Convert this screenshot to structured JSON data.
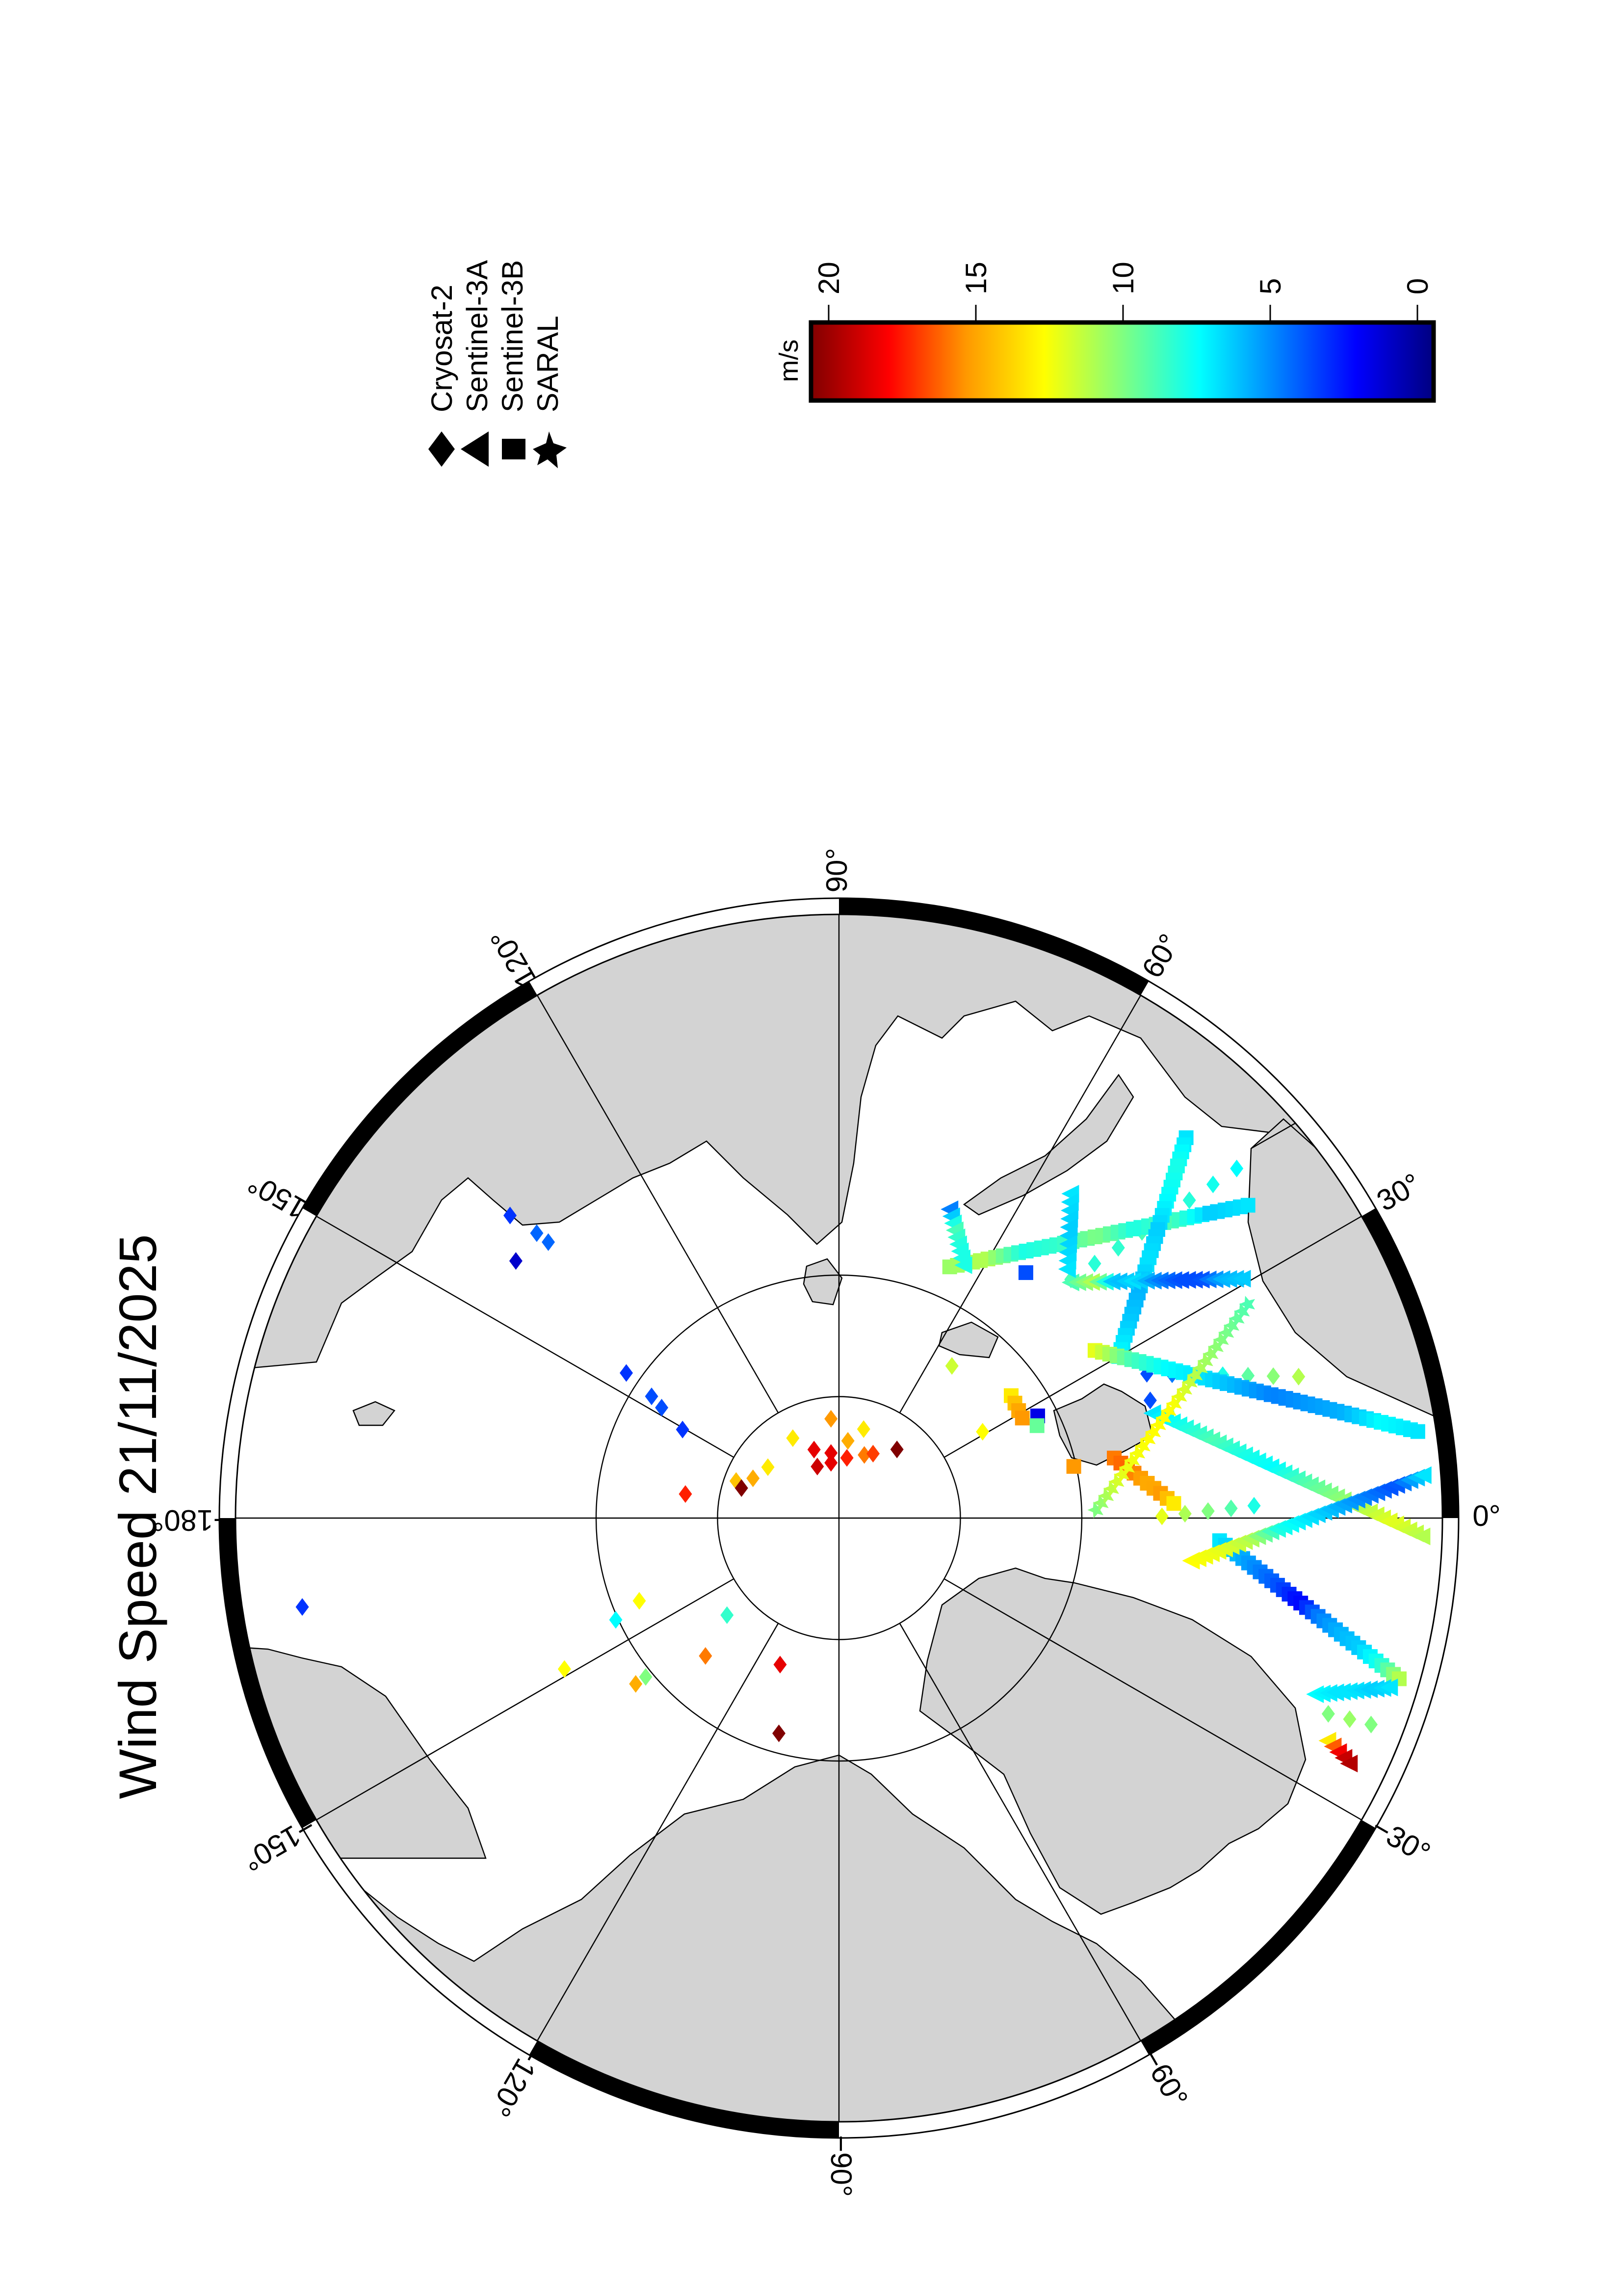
{
  "title": "Wind Speed 21/11/2025",
  "legend": {
    "satellites": [
      {
        "name": "Cryosat-2",
        "marker": "diamond"
      },
      {
        "name": "Sentinel-3A",
        "marker": "triangle"
      },
      {
        "name": "Sentinel-3B",
        "marker": "square"
      },
      {
        "name": "SARAL",
        "marker": "star"
      }
    ]
  },
  "colorbar": {
    "label": "m/s",
    "min": 0,
    "max": 20,
    "ticks": [
      "20",
      "15",
      "10",
      "5",
      "0"
    ],
    "colormap": [
      [
        0,
        "#000080"
      ],
      [
        2.5,
        "#0000ff"
      ],
      [
        5,
        "#0080ff"
      ],
      [
        7.5,
        "#00ffff"
      ],
      [
        10,
        "#80ff80"
      ],
      [
        12.5,
        "#ffff00"
      ],
      [
        15,
        "#ff9900"
      ],
      [
        17.5,
        "#ff0000"
      ],
      [
        20,
        "#800000"
      ]
    ]
  },
  "map": {
    "projection": "north polar",
    "land_color": "#d3d3d3",
    "latitude_circles": [
      85,
      80
    ],
    "longitude_labels": [
      "90°",
      "60°",
      "30°",
      "0°",
      "−30°",
      "−60°",
      "−90°",
      "−120°",
      "−150°",
      "−180°",
      "150°",
      "120°"
    ]
  },
  "chart_data": {
    "type": "scatter",
    "value_label": "m/s",
    "points": [
      [
        94.6,
        85.9,
        15,
        "Cryosat-2"
      ],
      [
        120,
        86.2,
        13,
        "Cryosat-2"
      ],
      [
        74.5,
        86.2,
        13,
        "Cryosat-2"
      ],
      [
        83.4,
        86.8,
        14.5,
        "Cryosat-2"
      ],
      [
        110,
        87.0,
        18,
        "Cryosat-2"
      ],
      [
        97,
        87.3,
        18,
        "Cryosat-2"
      ],
      [
        112.8,
        87.7,
        18.5,
        "Cryosat-2"
      ],
      [
        98.2,
        87.7,
        18,
        "Cryosat-2"
      ],
      [
        82.5,
        87.5,
        17,
        "Cryosat-2"
      ],
      [
        68.1,
        87.2,
        15.5,
        "Cryosat-2"
      ],
      [
        62.1,
        87.0,
        16.5,
        "Cryosat-2"
      ],
      [
        49.8,
        86.3,
        20,
        "Cryosat-2"
      ],
      [
        144.4,
        86.4,
        13,
        "Cryosat-2"
      ],
      [
        155.2,
        86.1,
        14.5,
        "Cryosat-2"
      ],
      [
        160.2,
        85.5,
        14,
        "Cryosat-2"
      ],
      [
        162.9,
        85.8,
        20,
        "Cryosat-2"
      ],
      [
        171.1,
        83.6,
        17,
        "Cryosat-2"
      ],
      [
        145.7,
        79.4,
        3.5,
        "Cryosat-2"
      ],
      [
        147.0,
        80.8,
        4,
        "Cryosat-2"
      ],
      [
        148.1,
        81.4,
        4,
        "Cryosat-2"
      ],
      [
        150.5,
        82.6,
        3.5,
        "Cryosat-2"
      ],
      [
        -157.5,
        81.1,
        12.5,
        "Cryosat-2"
      ],
      [
        -155.5,
        79.9,
        7.5,
        "Cryosat-2"
      ],
      [
        -139.1,
        83.9,
        8.5,
        "Cryosat-2"
      ],
      [
        -134.1,
        82.1,
        15.5,
        "Cryosat-2"
      ],
      [
        -111.9,
        83.5,
        18,
        "Cryosat-2"
      ],
      [
        -140.8,
        79.2,
        14.5,
        "Cryosat-2"
      ],
      [
        -140.6,
        79.7,
        10,
        "Cryosat-2"
      ],
      [
        -105.6,
        80.8,
        20,
        "Cryosat-2"
      ],
      [
        -151.2,
        77.1,
        12.5,
        "Cryosat-2"
      ],
      [
        -170.6,
        67.6,
        3.5,
        "Cryosat-2"
      ],
      [
        137.4,
        71.6,
        3.5,
        "Cryosat-2"
      ],
      [
        136.7,
        72.9,
        4.5,
        "Cryosat-2"
      ],
      [
        136.5,
        73.5,
        4.5,
        "Cryosat-2"
      ],
      [
        141.5,
        73.0,
        1.5,
        "Cryosat-2"
      ],
      [
        31.0,
        83.1,
        12.5,
        "Cryosat-2"
      ],
      [
        53.4,
        82.2,
        11.5,
        "Cryosat-2"
      ],
      [
        20.7,
        76.3,
        4,
        "Cryosat-2"
      ],
      [
        27.2,
        80.8,
        2,
        "Sentinel-3B"
      ],
      [
        25,
        81,
        9.5,
        "Sentinel-3B"
      ],
      [
        52.7,
        77.3,
        4,
        "Sentinel-3B"
      ],
      [
        12.4,
        80.1,
        15,
        "Sentinel-3B"
      ]
    ],
    "tracks": [
      {
        "satellite": "Cryosat-2",
        "from": [
          41.3,
          68.2
        ],
        "to": [
          45.8,
          76.3
        ],
        "speeds": [
          7.5,
          8,
          8.5,
          9,
          8,
          9
        ],
        "count": 8
      },
      {
        "satellite": "Cryosat-2",
        "from": [
          25.1,
          76.0
        ],
        "to": [
          17.1,
          70.2
        ],
        "speeds": [
          4,
          5,
          7,
          9,
          10,
          11
        ],
        "count": 7
      },
      {
        "satellite": "Cryosat-2",
        "from": [
          0.3,
          76.7
        ],
        "to": [
          1.7,
          72.9
        ],
        "speeds": [
          12,
          10.5,
          9.5,
          8
        ],
        "count": 5
      },
      {
        "satellite": "Cryosat-2",
        "from": [
          -21.8,
          68.3
        ],
        "to": [
          -21.2,
          66.5
        ],
        "speeds": [
          10,
          10.5,
          10
        ],
        "count": 3
      },
      {
        "satellite": "Sentinel-3B",
        "from": [
          66.2,
          78.7
        ],
        "to": [
          37.4,
          68.8
        ],
        "speeds": [
          10.5,
          11,
          8,
          8.5,
          10,
          8,
          9,
          6.5,
          7
        ],
        "count": 40
      },
      {
        "satellite": "Sentinel-3B",
        "from": [
          47.6,
          68.8
        ],
        "to": [
          30.0,
          76.7
        ],
        "speeds": [
          7,
          8,
          7.5,
          6.5,
          7,
          6,
          6.5,
          7.5
        ],
        "count": 32
      },
      {
        "satellite": "Sentinel-3B",
        "from": [
          33.2,
          77.4
        ],
        "to": [
          8.5,
          65.9
        ],
        "speeds": [
          12,
          9,
          7.5,
          7,
          6,
          5,
          5.5,
          6,
          7.5,
          7
        ],
        "count": 45
      },
      {
        "satellite": "Sentinel-3B",
        "from": [
          -3.4,
          74.3
        ],
        "to": [
          -16.0,
          66.0
        ],
        "speeds": [
          7,
          6,
          5,
          4,
          2.5,
          5,
          6,
          6.5,
          8,
          11
        ],
        "count": 32
      },
      {
        "satellite": "Sentinel-3B",
        "from": [
          12.3,
          78.4
        ],
        "to": [
          2.5,
          76.2
        ],
        "speeds": [
          15.5,
          16,
          15,
          14.5,
          15,
          13
        ],
        "count": 10
      },
      {
        "satellite": "Sentinel-3B",
        "from": [
          35.4,
          81.3
        ],
        "to": [
          28.6,
          81.4
        ],
        "speeds": [
          13,
          14.5,
          15
        ],
        "count": 4
      },
      {
        "satellite": "Sentinel-3A",
        "from": [
          45.5,
          76.4
        ],
        "to": [
          30.7,
          70.7
        ],
        "speeds": [
          9,
          11,
          6,
          7,
          5,
          4,
          4,
          6,
          6.5
        ],
        "count": 26
      },
      {
        "satellite": "Sentinel-3A",
        "from": [
          18.5,
          76.4
        ],
        "to": [
          -1.8,
          66.0
        ],
        "speeds": [
          7,
          8,
          9,
          8,
          7.5,
          9,
          10,
          11,
          12,
          11
        ],
        "count": 42
      },
      {
        "satellite": "Sentinel-3A",
        "from": [
          -6.9,
          75.4
        ],
        "to": [
          4.2,
          65.9
        ],
        "speeds": [
          12.5,
          12,
          11,
          8,
          7,
          6,
          5,
          4,
          7
        ],
        "count": 36
      },
      {
        "satellite": "Sentinel-3A",
        "from": [
          -20.3,
          69.1
        ],
        "to": [
          -17.1,
          66.3
        ],
        "speeds": [
          7.5,
          7,
          7,
          6.5,
          7
        ],
        "count": 12
      },
      {
        "satellite": "Sentinel-3A",
        "from": [
          -24.5,
          67.9
        ],
        "to": [
          -25.7,
          66.7
        ],
        "speeds": [
          13,
          17,
          18.5,
          19
        ],
        "count": 5
      },
      {
        "satellite": "Sentinel-3A",
        "from": [
          54.5,
          73.6
        ],
        "to": [
          47.5,
          76.1
        ],
        "speeds": [
          7,
          6.5,
          7
        ],
        "count": 10
      },
      {
        "satellite": "Sentinel-3A",
        "from": [
          70.3,
          76.5
        ],
        "to": [
          63.8,
          78.4
        ],
        "speeds": [
          5,
          9,
          8,
          8
        ],
        "count": 9
      },
      {
        "satellite": "SARAL",
        "from": [
          1.8,
          79.4
        ],
        "to": [
          27.6,
          71.0
        ],
        "speeds": [
          10,
          12,
          12.5,
          12.5,
          11,
          10,
          9
        ],
        "count": 30
      }
    ]
  }
}
